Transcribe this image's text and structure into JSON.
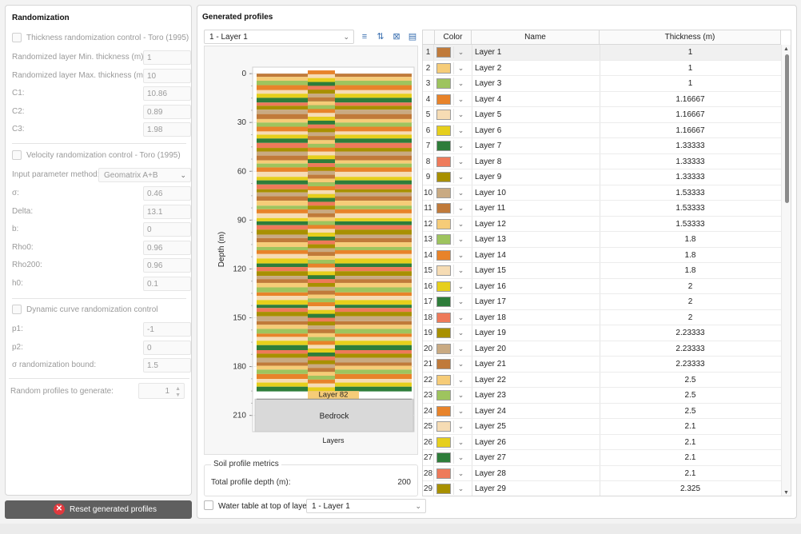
{
  "left": {
    "title": "Randomization",
    "thickness_toggle": "Thickness randomization control - Toro (1995)",
    "thickness_fields": [
      {
        "label": "Randomized layer Min. thickness (m):",
        "value": "1"
      },
      {
        "label": "Randomized layer Max. thickness (m):",
        "value": "10"
      },
      {
        "label": "C1:",
        "value": "10.86"
      },
      {
        "label": "C2:",
        "value": "0.89"
      },
      {
        "label": "C3:",
        "value": "1.98"
      }
    ],
    "velocity_toggle": "Velocity randomization control - Toro (1995)",
    "input_method_label": "Input parameter method:",
    "input_method_value": "Geomatrix A+B",
    "velocity_fields": [
      {
        "label": "σ:",
        "value": "0.46"
      },
      {
        "label": "Delta:",
        "value": "13.1"
      },
      {
        "label": "b:",
        "value": "0"
      },
      {
        "label": "Rho0:",
        "value": "0.96"
      },
      {
        "label": "Rho200:",
        "value": "0.96"
      },
      {
        "label": "h0:",
        "value": "0.1"
      }
    ],
    "dynamic_toggle": "Dynamic curve randomization control",
    "dynamic_fields": [
      {
        "label": "p1:",
        "value": "-1"
      },
      {
        "label": "p2:",
        "value": "0"
      },
      {
        "label": "σ randomization bound:",
        "value": "1.5"
      }
    ],
    "random_profiles_label": "Random profiles to generate:",
    "random_profiles_value": "1",
    "reset_button": "Reset generated profiles"
  },
  "right": {
    "title": "Generated profiles",
    "layer_select": "1 - Layer 1",
    "toolbar_icons": [
      "insert-row-icon",
      "move-row-icon",
      "delete-row-icon",
      "table-settings-icon"
    ],
    "metrics_title": "Soil profile metrics",
    "total_depth_label": "Total profile depth (m):",
    "total_depth_value": "200",
    "water_table_label": "Water table at top of layer:",
    "water_table_value": "1 - Layer 1",
    "grid_headers": {
      "color": "Color",
      "name": "Name",
      "thickness": "Thickness (m)"
    }
  },
  "chart_data": {
    "type": "stacked-profile",
    "ylabel": "Depth (m)",
    "xlabel": "Layers",
    "yticks": [
      0,
      30,
      60,
      90,
      120,
      150,
      180,
      210
    ],
    "ylim": [
      -4,
      220
    ],
    "total_depth": 200,
    "last_layer_label": "Layer 82",
    "bedrock_label": "Bedrock",
    "bedrock_range": [
      200,
      220
    ]
  },
  "palette": [
    "#c07a3a",
    "#f6cc78",
    "#9ec45e",
    "#e8832a",
    "#f6dcb4",
    "#e6cf1c",
    "#2e7d3a",
    "#ee7a5a",
    "#a89000",
    "#c9aa82"
  ],
  "layers": [
    {
      "n": "1",
      "name": "Layer 1",
      "thickness": "1",
      "color": "#c07a3a"
    },
    {
      "n": "2",
      "name": "Layer 2",
      "thickness": "1",
      "color": "#f6cc78"
    },
    {
      "n": "3",
      "name": "Layer 3",
      "thickness": "1",
      "color": "#9ec45e"
    },
    {
      "n": "4",
      "name": "Layer 4",
      "thickness": "1.16667",
      "color": "#e8832a"
    },
    {
      "n": "5",
      "name": "Layer 5",
      "thickness": "1.16667",
      "color": "#f6dcb4"
    },
    {
      "n": "6",
      "name": "Layer 6",
      "thickness": "1.16667",
      "color": "#e6cf1c"
    },
    {
      "n": "7",
      "name": "Layer 7",
      "thickness": "1.33333",
      "color": "#2e7d3a"
    },
    {
      "n": "8",
      "name": "Layer 8",
      "thickness": "1.33333",
      "color": "#ee7a5a"
    },
    {
      "n": "9",
      "name": "Layer 9",
      "thickness": "1.33333",
      "color": "#a89000"
    },
    {
      "n": "10",
      "name": "Layer 10",
      "thickness": "1.53333",
      "color": "#c9aa82"
    },
    {
      "n": "11",
      "name": "Layer 11",
      "thickness": "1.53333",
      "color": "#c07a3a"
    },
    {
      "n": "12",
      "name": "Layer 12",
      "thickness": "1.53333",
      "color": "#f6cc78"
    },
    {
      "n": "13",
      "name": "Layer 13",
      "thickness": "1.8",
      "color": "#9ec45e"
    },
    {
      "n": "14",
      "name": "Layer 14",
      "thickness": "1.8",
      "color": "#e8832a"
    },
    {
      "n": "15",
      "name": "Layer 15",
      "thickness": "1.8",
      "color": "#f6dcb4"
    },
    {
      "n": "16",
      "name": "Layer 16",
      "thickness": "2",
      "color": "#e6cf1c"
    },
    {
      "n": "17",
      "name": "Layer 17",
      "thickness": "2",
      "color": "#2e7d3a"
    },
    {
      "n": "18",
      "name": "Layer 18",
      "thickness": "2",
      "color": "#ee7a5a"
    },
    {
      "n": "19",
      "name": "Layer 19",
      "thickness": "2.23333",
      "color": "#a89000"
    },
    {
      "n": "20",
      "name": "Layer 20",
      "thickness": "2.23333",
      "color": "#c9aa82"
    },
    {
      "n": "21",
      "name": "Layer 21",
      "thickness": "2.23333",
      "color": "#c07a3a"
    },
    {
      "n": "22",
      "name": "Layer 22",
      "thickness": "2.5",
      "color": "#f6cc78"
    },
    {
      "n": "23",
      "name": "Layer 23",
      "thickness": "2.5",
      "color": "#9ec45e"
    },
    {
      "n": "24",
      "name": "Layer 24",
      "thickness": "2.5",
      "color": "#e8832a"
    },
    {
      "n": "25",
      "name": "Layer 25",
      "thickness": "2.1",
      "color": "#f6dcb4"
    },
    {
      "n": "26",
      "name": "Layer 26",
      "thickness": "2.1",
      "color": "#e6cf1c"
    },
    {
      "n": "27",
      "name": "Layer 27",
      "thickness": "2.1",
      "color": "#2e7d3a"
    },
    {
      "n": "28",
      "name": "Layer 28",
      "thickness": "2.1",
      "color": "#ee7a5a"
    },
    {
      "n": "29",
      "name": "Layer 29",
      "thickness": "2.325",
      "color": "#a89000"
    }
  ]
}
